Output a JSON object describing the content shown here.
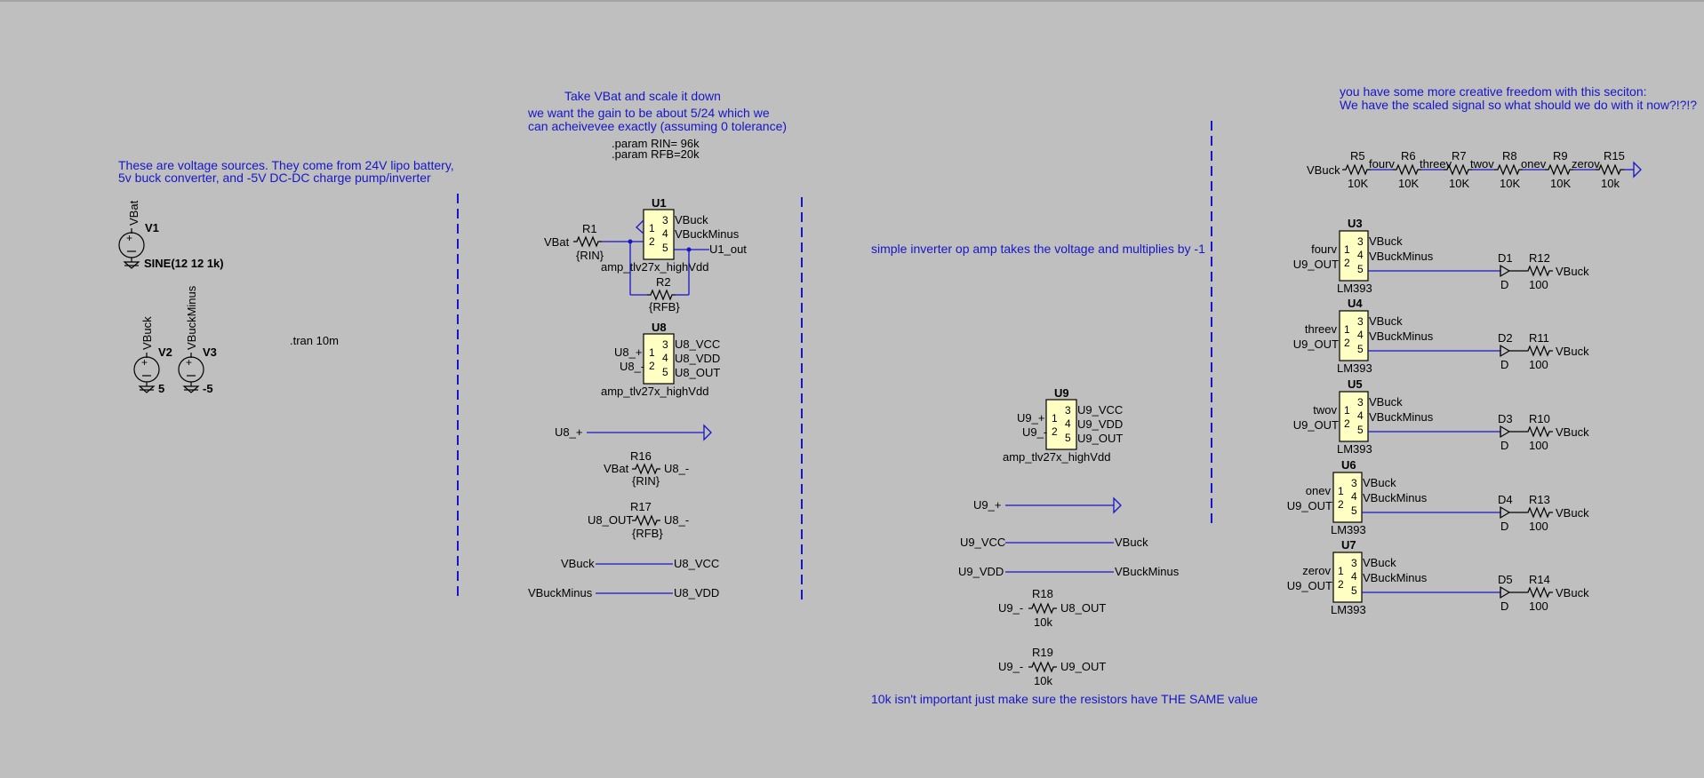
{
  "comments": {
    "sources_line1": "These are voltage sources. They come from 24V lipo battery,",
    "sources_line2": "5v buck converter, and -5V DC-DC charge pump/inverter",
    "scale_title": "Take VBat and scale it down",
    "scale_line1": "we want the gain to be about 5/24 which we",
    "scale_line2": "can acheivevee exactly (assuming 0 tolerance)",
    "inverter": "simple inverter op amp takes the voltage and multiplies by -1",
    "resistor_note": "10k isn't important just make sure the resistors have THE SAME value",
    "freedom_line1": "you have some more creative freedom with this seciton:",
    "freedom_line2": "We have the scaled signal so what should we do with it now?!?!?"
  },
  "directives": {
    "tran": ".tran 10m",
    "param_rin": ".param RIN= 96k",
    "param_rfb": ".param RFB=20k"
  },
  "sources": {
    "v1_name": "V1",
    "v1_net": "VBat",
    "v1_value": "SINE(12 12 1k)",
    "v2_name": "V2",
    "v2_net": "VBuck",
    "v2_value": "5",
    "v3_name": "V3",
    "v3_net": "VBuckMinus",
    "v3_value": "-5"
  },
  "pins": {
    "p1": "1",
    "p2": "2",
    "p3": "3",
    "p4": "4",
    "p5": "5"
  },
  "u1": {
    "name": "U1",
    "model": "amp_tlv27x_highVdd",
    "vbat": "VBat",
    "r1": "R1",
    "r1_val": "{RIN}",
    "r2": "R2",
    "r2_val": "{RFB}",
    "vcc": "VBuck",
    "vdd": "VBuckMinus",
    "out": "U1_out"
  },
  "u8": {
    "name": "U8",
    "model": "amp_tlv27x_highVdd",
    "inp": "U8_+",
    "inn": "U8_-",
    "vcc": "U8_VCC",
    "vdd": "U8_VDD",
    "out": "U8_OUT"
  },
  "u8_nets": {
    "plus_flag": "U8_+",
    "r16": "R16",
    "r16_left": "VBat",
    "r16_right": "U8_-",
    "r16_val": "{RIN}",
    "r17": "R17",
    "r17_left": "U8_OUT",
    "r17_right": "U8_-",
    "r17_val": "{RFB}",
    "vbuck": "VBuck",
    "u8vcc": "U8_VCC",
    "vbuckminus": "VBuckMinus",
    "u8vdd": "U8_VDD"
  },
  "u9": {
    "name": "U9",
    "model": "amp_tlv27x_highVdd",
    "inp": "U9_+",
    "inn": "U9_-",
    "vcc": "U9_VCC",
    "vdd": "U9_VDD",
    "out": "U9_OUT"
  },
  "u9_nets": {
    "plus_flag": "U9_+",
    "vcc_left": "U9_VCC",
    "vcc_right": "VBuck",
    "vdd_left": "U9_VDD",
    "vdd_right": "VBuckMinus",
    "r18": "R18",
    "r18_left": "U9_-",
    "r18_right": "U8_OUT",
    "r18_val": "10k",
    "r19": "R19",
    "r19_left": "U9_-",
    "r19_right": "U9_OUT",
    "r19_val": "10k"
  },
  "ladder": {
    "start": "VBuck",
    "resistors": [
      {
        "name": "R5",
        "value": "10K",
        "node": "fourv"
      },
      {
        "name": "R6",
        "value": "10K",
        "node": "threev"
      },
      {
        "name": "R7",
        "value": "10K",
        "node": "twov"
      },
      {
        "name": "R8",
        "value": "10K",
        "node": "onev"
      },
      {
        "name": "R9",
        "value": "10K",
        "node": "zerov"
      },
      {
        "name": "R15",
        "value": "10k",
        "node": ""
      }
    ]
  },
  "comparators": [
    {
      "name": "U3",
      "model": "LM393",
      "inp": "fourv",
      "inn": "U9_OUT",
      "vcc": "VBuck",
      "vdd": "VBuckMinus",
      "diode": "D1",
      "diode_val": "D",
      "res": "R12",
      "res_val": "100",
      "rail": "VBuck"
    },
    {
      "name": "U4",
      "model": "LM393",
      "inp": "threev",
      "inn": "U9_OUT",
      "vcc": "VBuck",
      "vdd": "VBuckMinus",
      "diode": "D2",
      "diode_val": "D",
      "res": "R11",
      "res_val": "100",
      "rail": "VBuck"
    },
    {
      "name": "U5",
      "model": "LM393",
      "inp": "twov",
      "inn": "U9_OUT",
      "vcc": "VBuck",
      "vdd": "VBuckMinus",
      "diode": "D3",
      "diode_val": "D",
      "res": "R10",
      "res_val": "100",
      "rail": "VBuck"
    },
    {
      "name": "U6",
      "model": "LM393",
      "inp": "onev",
      "inn": "U9_OUT",
      "vcc": "VBuck",
      "vdd": "VBuckMinus",
      "diode": "D4",
      "diode_val": "D",
      "res": "R13",
      "res_val": "100",
      "rail": "VBuck"
    },
    {
      "name": "U7",
      "model": "LM393",
      "inp": "zerov",
      "inn": "U9_OUT",
      "vcc": "VBuck",
      "vdd": "VBuckMinus",
      "diode": "D5",
      "diode_val": "D",
      "res": "R14",
      "res_val": "100",
      "rail": "VBuck"
    }
  ],
  "colors": {
    "background": "#bfbfbf",
    "wire": "#1616c8",
    "comment": "#1616c8",
    "symbol_fill": "#ffffc4"
  }
}
